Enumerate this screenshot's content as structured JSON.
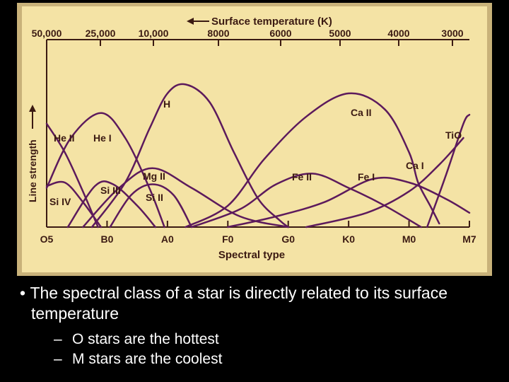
{
  "chart_data": {
    "type": "line",
    "title": "Surface temperature (K)",
    "xlabel": "Spectral type",
    "ylabel": "Line strength",
    "x_categories": [
      "O5",
      "B0",
      "A0",
      "F0",
      "G0",
      "K0",
      "M0",
      "M7"
    ],
    "top_axis_ticks": [
      "50,000",
      "25,000",
      "10,000",
      "8000",
      "6000",
      "5000",
      "4000",
      "3000"
    ],
    "ylim": [
      0,
      1
    ],
    "series": [
      {
        "name": "He II",
        "color": "#5c1a5c",
        "points": [
          [
            0,
            0.58
          ],
          [
            0.3,
            0.42
          ],
          [
            0.6,
            0.2
          ],
          [
            0.85,
            0.0
          ]
        ]
      },
      {
        "name": "He I",
        "color": "#5c1a5c",
        "points": [
          [
            0,
            0.22
          ],
          [
            0.4,
            0.5
          ],
          [
            0.9,
            0.64
          ],
          [
            1.3,
            0.5
          ],
          [
            1.7,
            0.22
          ],
          [
            1.95,
            0.0
          ]
        ]
      },
      {
        "name": "Si IV",
        "color": "#5c1a5c",
        "points": [
          [
            0,
            0.23
          ],
          [
            0.3,
            0.25
          ],
          [
            0.6,
            0.14
          ],
          [
            0.9,
            0.0
          ]
        ]
      },
      {
        "name": "Si III",
        "color": "#5c1a5c",
        "points": [
          [
            0.35,
            0.0
          ],
          [
            0.8,
            0.23
          ],
          [
            1.1,
            0.24
          ],
          [
            1.5,
            0.12
          ],
          [
            1.8,
            0.0
          ]
        ]
      },
      {
        "name": "Si II",
        "color": "#5c1a5c",
        "points": [
          [
            1.05,
            0.0
          ],
          [
            1.4,
            0.18
          ],
          [
            1.75,
            0.24
          ],
          [
            2.1,
            0.18
          ],
          [
            2.4,
            0.0
          ]
        ]
      },
      {
        "name": "Mg II",
        "color": "#5c1a5c",
        "points": [
          [
            0.6,
            0.0
          ],
          [
            1.2,
            0.22
          ],
          [
            1.75,
            0.33
          ],
          [
            2.4,
            0.22
          ],
          [
            3.2,
            0.06
          ],
          [
            4.0,
            0.0
          ]
        ]
      },
      {
        "name": "H",
        "color": "#5c1a5c",
        "points": [
          [
            0.75,
            0.0
          ],
          [
            1.3,
            0.25
          ],
          [
            1.7,
            0.55
          ],
          [
            2.0,
            0.75
          ],
          [
            2.3,
            0.8
          ],
          [
            2.7,
            0.7
          ],
          [
            3.1,
            0.42
          ],
          [
            3.5,
            0.16
          ],
          [
            3.85,
            0.04
          ],
          [
            4.0,
            0.0
          ]
        ]
      },
      {
        "name": "Ca II",
        "color": "#5c1a5c",
        "points": [
          [
            2.3,
            0.0
          ],
          [
            3.0,
            0.12
          ],
          [
            3.6,
            0.38
          ],
          [
            4.3,
            0.62
          ],
          [
            5.0,
            0.75
          ],
          [
            5.6,
            0.66
          ],
          [
            6.0,
            0.42
          ],
          [
            6.15,
            0.25
          ],
          [
            6.35,
            0.12
          ],
          [
            6.5,
            0.02
          ]
        ]
      },
      {
        "name": "Fe II",
        "color": "#5c1a5c",
        "points": [
          [
            2.4,
            0.0
          ],
          [
            3.2,
            0.1
          ],
          [
            3.8,
            0.24
          ],
          [
            4.4,
            0.3
          ],
          [
            5.0,
            0.22
          ],
          [
            5.6,
            0.12
          ],
          [
            6.2,
            0.0
          ]
        ]
      },
      {
        "name": "Fe I",
        "color": "#5c1a5c",
        "points": [
          [
            3.0,
            0.0
          ],
          [
            3.8,
            0.06
          ],
          [
            4.6,
            0.14
          ],
          [
            5.4,
            0.27
          ],
          [
            6.0,
            0.25
          ],
          [
            6.6,
            0.16
          ],
          [
            7.0,
            0.08
          ]
        ]
      },
      {
        "name": "Ca I",
        "color": "#5c1a5c",
        "points": [
          [
            4.3,
            0.0
          ],
          [
            5.3,
            0.08
          ],
          [
            6.0,
            0.2
          ],
          [
            6.5,
            0.35
          ],
          [
            6.9,
            0.5
          ]
        ]
      },
      {
        "name": "TiO",
        "color": "#5c1a5c",
        "points": [
          [
            6.3,
            0.0
          ],
          [
            6.6,
            0.28
          ],
          [
            6.9,
            0.58
          ],
          [
            7.0,
            0.63
          ]
        ]
      }
    ]
  },
  "bullets": {
    "main": "The spectral class of a star is directly related to its surface temperature",
    "sub": [
      "O stars are the hottest",
      "M stars are the coolest"
    ]
  },
  "colors": {
    "panel": "#f4e3a5",
    "frame": "#c9b27a",
    "axis": "#3b1a12",
    "curve": "#5c1a5c",
    "text": "#ffffff",
    "background": "#000000"
  }
}
